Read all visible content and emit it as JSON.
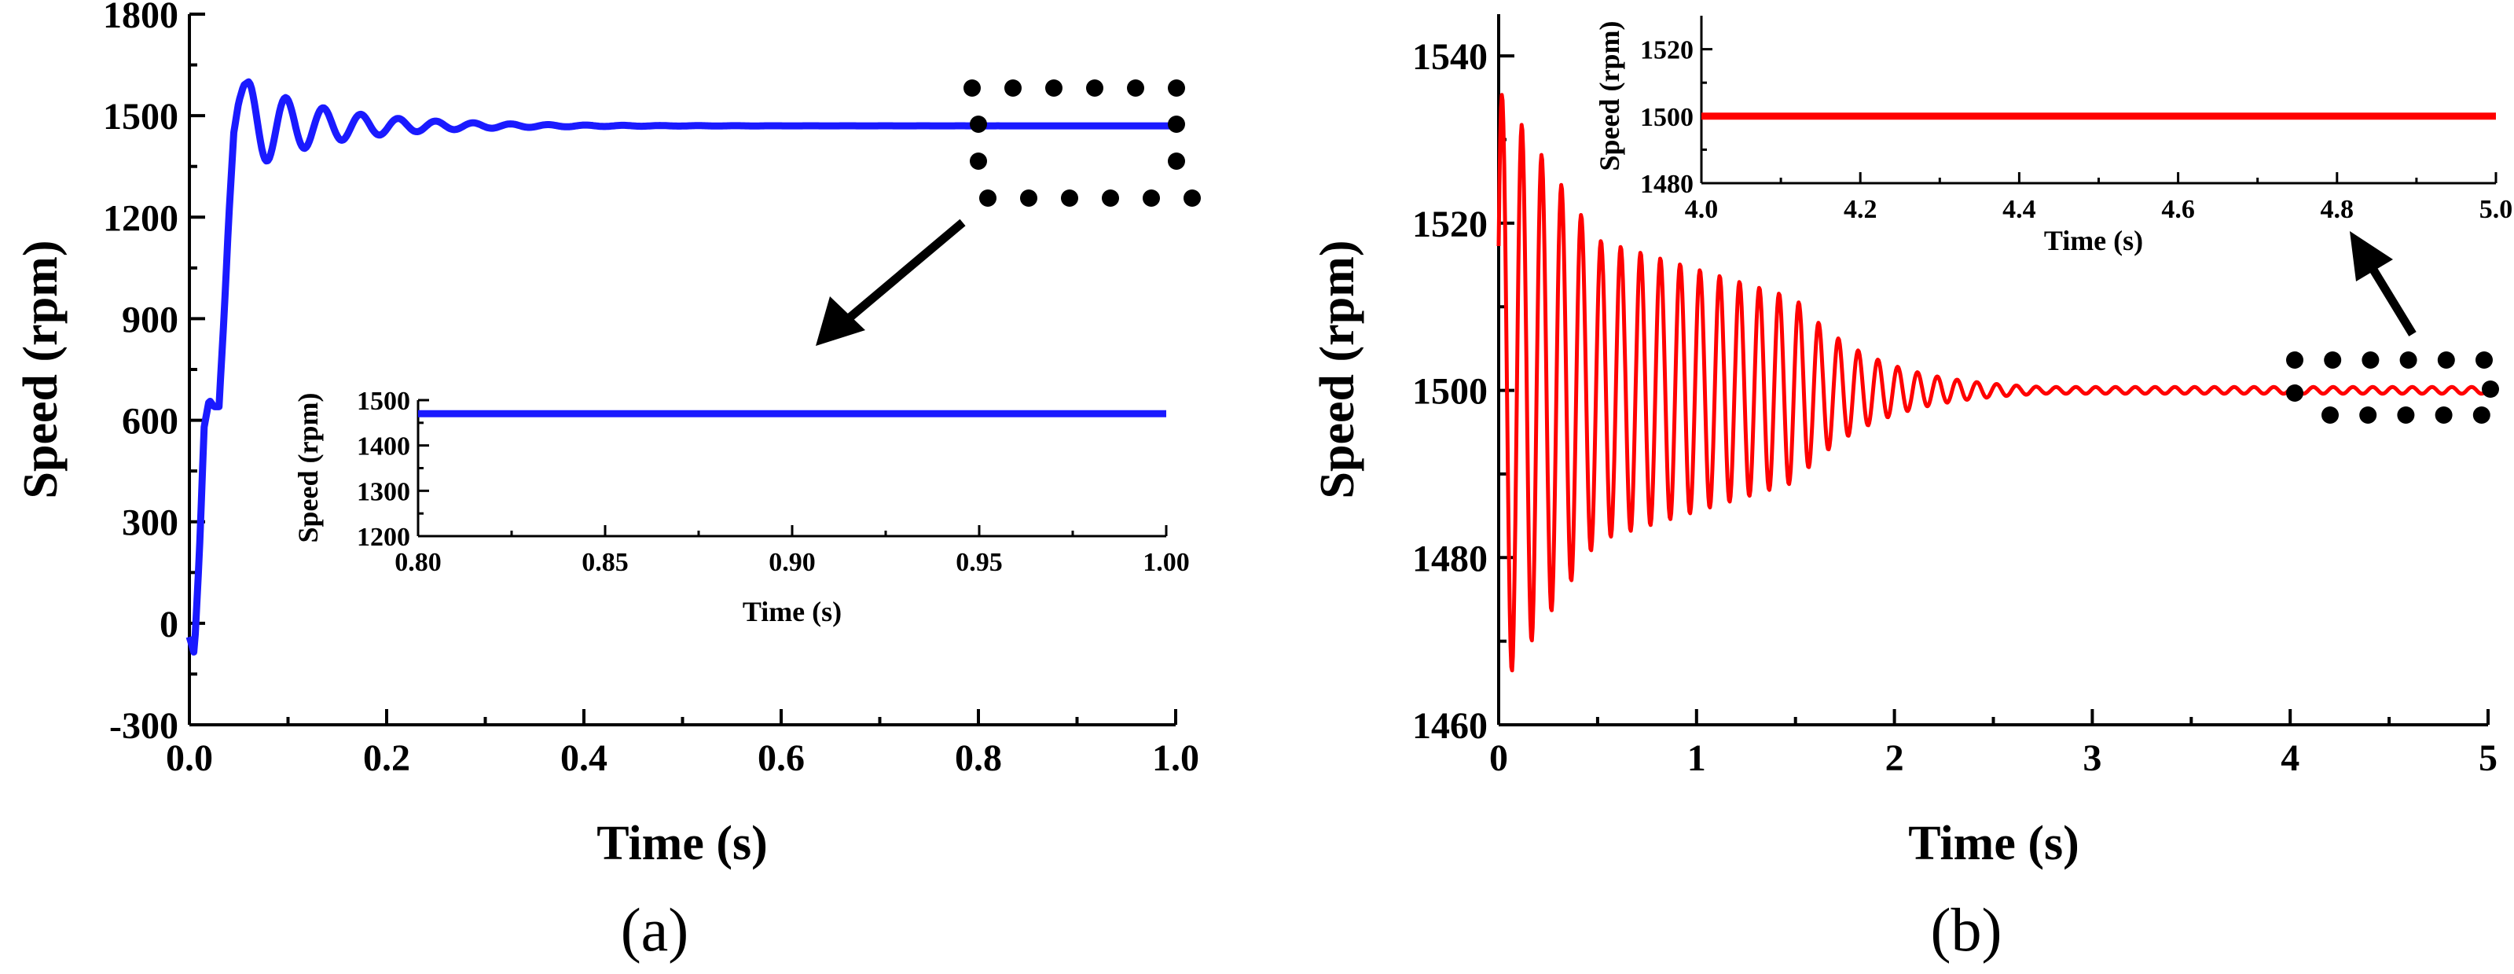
{
  "chart_data": [
    {
      "panel": "a",
      "type": "line",
      "panel_label": "(a)",
      "xlabel": "Time (s)",
      "ylabel": "Speed (rpm)",
      "xlim": [
        0.0,
        1.0
      ],
      "ylim": [
        -300,
        1800
      ],
      "xticks": [
        "0.0",
        "0.2",
        "0.4",
        "0.6",
        "0.8",
        "1.0"
      ],
      "xtick_values": [
        0.0,
        0.2,
        0.4,
        0.6,
        0.8,
        1.0
      ],
      "yticks": [
        "-300",
        "0",
        "300",
        "600",
        "900",
        "1200",
        "1500",
        "1800"
      ],
      "ytick_values": [
        -300,
        0,
        300,
        600,
        900,
        1200,
        1500,
        1800
      ],
      "series": [
        {
          "name": "Speed",
          "color": "#1a1aff",
          "description": "Start-up transient: dip to about -90 rpm, step to about 640 rpm, overshoot to about 1600 rpm at 0.06 s, damped oscillation settling at about 1470 rpm",
          "x": [
            0.0,
            0.005,
            0.01,
            0.015,
            0.02,
            0.025,
            0.03,
            0.035,
            0.04,
            0.045,
            0.05,
            0.055,
            0.06,
            0.07,
            0.08,
            0.1,
            0.12,
            0.14,
            0.2,
            0.3,
            0.4,
            0.6,
            1.0
          ],
          "y": [
            -40,
            -90,
            200,
            580,
            660,
            640,
            640,
            900,
            1200,
            1450,
            1540,
            1590,
            1600,
            1420,
            1330,
            1560,
            1400,
            1540,
            1450,
            1480,
            1470,
            1470,
            1470
          ],
          "settling_value": 1470
        }
      ],
      "inset": {
        "xlabel": "Time (s)",
        "ylabel": "Speed (rpm)",
        "xlim": [
          0.8,
          1.0
        ],
        "ylim": [
          1200,
          1500
        ],
        "xticks": [
          "0.80",
          "0.85",
          "0.90",
          "0.95",
          "1.00"
        ],
        "xtick_values": [
          0.8,
          0.85,
          0.9,
          0.95,
          1.0
        ],
        "yticks": [
          "1200",
          "1300",
          "1400",
          "1500"
        ],
        "ytick_values": [
          1200,
          1300,
          1400,
          1500
        ],
        "series": [
          {
            "name": "Speed (zoom)",
            "color": "#1a1aff",
            "x": [
              0.8,
              1.0
            ],
            "y": [
              1470,
              1470
            ]
          }
        ]
      },
      "annotation": "dotted rectangle around the steady-state region (0.8 to 1.0 s) with an arrow pointing to the inset"
    },
    {
      "panel": "b",
      "type": "line",
      "panel_label": "(b)",
      "xlabel": "Time (s)",
      "ylabel": "Speed (rpm)",
      "xlim": [
        0,
        5
      ],
      "ylim": [
        1460,
        1545
      ],
      "xticks": [
        "0",
        "1",
        "2",
        "3",
        "4",
        "5"
      ],
      "xtick_values": [
        0,
        1,
        2,
        3,
        4,
        5
      ],
      "yticks": [
        "1460",
        "1480",
        "1500",
        "1520",
        "1540"
      ],
      "ytick_values": [
        1460,
        1480,
        1500,
        1520,
        1540
      ],
      "series": [
        {
          "name": "Speed",
          "color": "#ff0000",
          "description": "Damped oscillation about 1500 rpm, period about 0.1 s, first peak about 1536 rpm, first trough about 1467 rpm, settled by about 2.8 s",
          "x": [
            0.0,
            0.01,
            0.06,
            0.5,
            1.0,
            1.5,
            2.0,
            2.5,
            2.8,
            5.0
          ],
          "y": [
            1500,
            1536,
            1467,
            1518,
            1513,
            1511,
            1506,
            1502,
            1500,
            1500
          ],
          "period_s": 0.1,
          "center_value": 1500
        }
      ],
      "inset": {
        "xlabel": "Time (s)",
        "ylabel": "Speed (rpm)",
        "xlim": [
          4.0,
          5.0
        ],
        "ylim": [
          1480,
          1530
        ],
        "xticks": [
          "4.0",
          "4.2",
          "4.4",
          "4.6",
          "4.8",
          "5.0"
        ],
        "xtick_values": [
          4.0,
          4.2,
          4.4,
          4.6,
          4.8,
          5.0
        ],
        "yticks": [
          "1480",
          "1500",
          "1520"
        ],
        "ytick_values": [
          1480,
          1500,
          1520
        ],
        "series": [
          {
            "name": "Speed (zoom)",
            "color": "#ff0000",
            "x": [
              4.0,
              5.0
            ],
            "y": [
              1500,
              1500
            ]
          }
        ]
      },
      "annotation": "dotted rectangle around the steady-state region (4.0 to 5.0 s) with an arrow pointing to the inset"
    }
  ]
}
